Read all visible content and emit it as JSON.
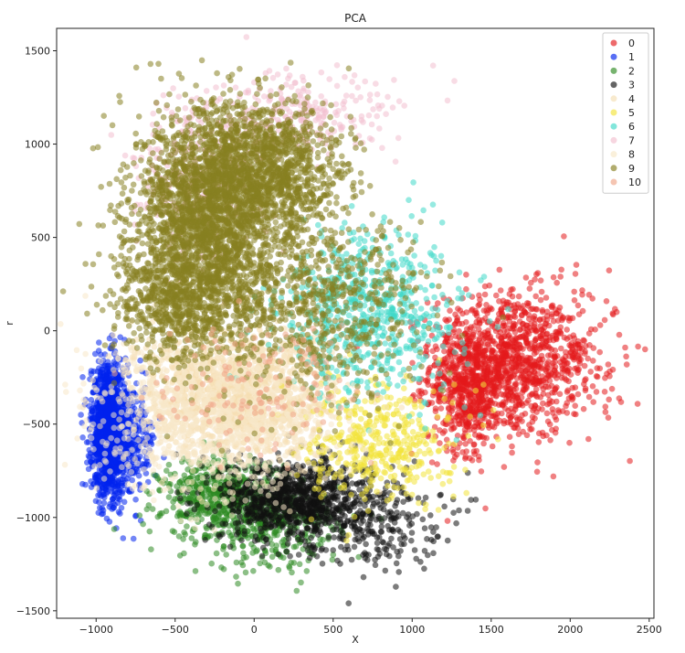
{
  "chart_data": {
    "type": "scatter",
    "title": "PCA",
    "xlabel": "X",
    "ylabel": "r",
    "xlim": [
      -1250,
      2530
    ],
    "ylim": [
      -1540,
      1620
    ],
    "xticks": [
      -1000,
      -500,
      0,
      500,
      1000,
      1500,
      2000,
      2500
    ],
    "yticks": [
      -1500,
      -1000,
      -500,
      0,
      500,
      1000,
      1500
    ],
    "grid": false,
    "legend_position": "top-right",
    "series": [
      {
        "name": "0",
        "color": "#e41a1c",
        "clusters": [
          {
            "center": [
              1580,
              -180
            ],
            "spread": [
              230,
              200
            ],
            "count": 900
          },
          {
            "center": [
              1350,
              -300
            ],
            "spread": [
              110,
              170
            ],
            "count": 450
          },
          {
            "center": [
              1900,
              -150
            ],
            "spread": [
              230,
              190
            ],
            "count": 260
          }
        ]
      },
      {
        "name": "1",
        "color": "#0022ee",
        "clusters": [
          {
            "center": [
              -920,
              -530
            ],
            "spread": [
              55,
              170
            ],
            "count": 1400
          },
          {
            "center": [
              -780,
              -600
            ],
            "spread": [
              80,
              150
            ],
            "count": 250
          }
        ]
      },
      {
        "name": "2",
        "color": "#2e8b22",
        "clusters": [
          {
            "center": [
              -200,
              -900
            ],
            "spread": [
              190,
              110
            ],
            "count": 600
          },
          {
            "center": [
              150,
              -1050
            ],
            "spread": [
              200,
              120
            ],
            "count": 300
          }
        ]
      },
      {
        "name": "3",
        "color": "#111111",
        "clusters": [
          {
            "center": [
              250,
              -900
            ],
            "spread": [
              230,
              110
            ],
            "count": 900
          },
          {
            "center": [
              750,
              -1000
            ],
            "spread": [
              220,
              130
            ],
            "count": 260
          }
        ]
      },
      {
        "name": "4",
        "color": "#f5deb3",
        "clusters": [
          {
            "center": [
              -100,
              -350
            ],
            "spread": [
              330,
              180
            ],
            "count": 1300
          }
        ]
      },
      {
        "name": "5",
        "color": "#f2e33a",
        "clusters": [
          {
            "center": [
              800,
              -600
            ],
            "spread": [
              230,
              160
            ],
            "count": 420
          }
        ]
      },
      {
        "name": "6",
        "color": "#40d8c8",
        "clusters": [
          {
            "center": [
              750,
              100
            ],
            "spread": [
              280,
              220
            ],
            "count": 650
          }
        ]
      },
      {
        "name": "7",
        "color": "#f3c0d0",
        "clusters": [
          {
            "center": [
              -350,
              800
            ],
            "spread": [
              210,
              220
            ],
            "count": 350
          },
          {
            "center": [
              300,
              1150
            ],
            "spread": [
              300,
              110
            ],
            "count": 250
          }
        ]
      },
      {
        "name": "8",
        "color": "#f8e8c8",
        "clusters": [
          {
            "center": [
              -250,
              -450
            ],
            "spread": [
              380,
              200
            ],
            "count": 900
          }
        ]
      },
      {
        "name": "9",
        "color": "#878021",
        "clusters": [
          {
            "center": [
              -300,
              550
            ],
            "spread": [
              230,
              300
            ],
            "count": 2200
          },
          {
            "center": [
              50,
              850
            ],
            "spread": [
              260,
              180
            ],
            "count": 1300
          },
          {
            "center": [
              400,
              150
            ],
            "spread": [
              350,
              250
            ],
            "count": 700
          },
          {
            "center": [
              -500,
              150
            ],
            "spread": [
              200,
              150
            ],
            "count": 500
          }
        ]
      },
      {
        "name": "10",
        "color": "#f0a688",
        "clusters": [
          {
            "center": [
              0,
              -300
            ],
            "spread": [
              300,
              150
            ],
            "count": 150
          }
        ]
      }
    ]
  }
}
